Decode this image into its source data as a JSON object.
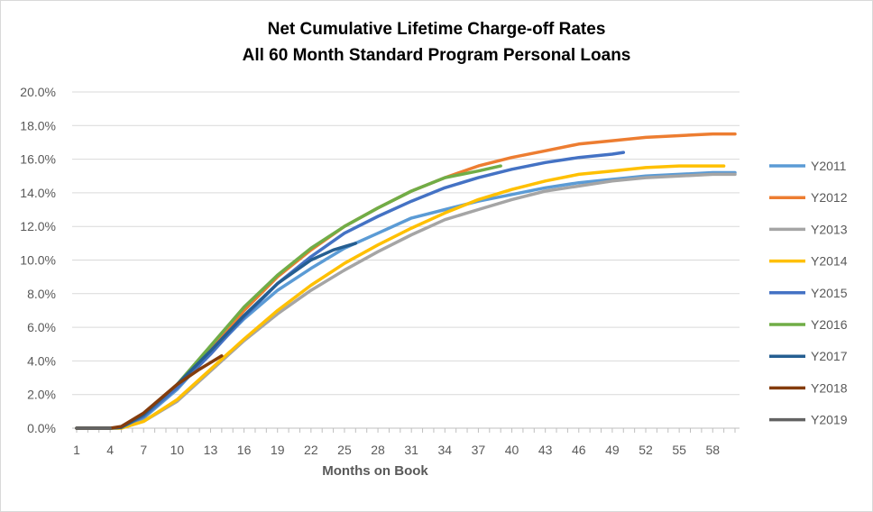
{
  "chart_data": {
    "type": "line",
    "title": [
      "Net Cumulative Lifetime Charge-off Rates",
      "All 60 Month Standard Program Personal Loans"
    ],
    "xlabel": "Months on Book",
    "ylabel": "",
    "xlim": [
      1,
      60
    ],
    "ylim": [
      0,
      20
    ],
    "x_ticks": [
      1,
      4,
      7,
      10,
      13,
      16,
      19,
      22,
      25,
      28,
      31,
      34,
      37,
      40,
      43,
      46,
      49,
      52,
      55,
      58
    ],
    "y_ticks": [
      "0.0%",
      "2.0%",
      "4.0%",
      "6.0%",
      "8.0%",
      "10.0%",
      "12.0%",
      "14.0%",
      "16.0%",
      "18.0%",
      "20.0%"
    ],
    "grid": "horizontal",
    "legend": "right",
    "series": [
      {
        "name": "Y2011",
        "color": "#5b9bd5",
        "x": [
          1,
          4,
          5,
          7,
          10,
          13,
          16,
          19,
          22,
          25,
          28,
          31,
          34,
          37,
          40,
          43,
          46,
          49,
          52,
          55,
          58,
          60
        ],
        "values": [
          0,
          0,
          0.05,
          0.6,
          2.3,
          4.5,
          6.5,
          8.2,
          9.5,
          10.7,
          11.6,
          12.5,
          13.0,
          13.5,
          13.9,
          14.3,
          14.6,
          14.8,
          15.0,
          15.1,
          15.2,
          15.2
        ]
      },
      {
        "name": "Y2012",
        "color": "#ed7d31",
        "x": [
          1,
          4,
          5,
          7,
          10,
          13,
          16,
          19,
          22,
          25,
          28,
          31,
          34,
          37,
          40,
          43,
          46,
          49,
          52,
          55,
          58,
          60
        ],
        "values": [
          0,
          0,
          0.05,
          0.7,
          2.5,
          4.7,
          7.0,
          9.0,
          10.6,
          12.0,
          13.1,
          14.1,
          14.9,
          15.6,
          16.1,
          16.5,
          16.9,
          17.1,
          17.3,
          17.4,
          17.5,
          17.5
        ]
      },
      {
        "name": "Y2013",
        "color": "#a5a5a5",
        "x": [
          1,
          4,
          5,
          7,
          10,
          13,
          16,
          19,
          22,
          25,
          28,
          31,
          34,
          37,
          40,
          43,
          46,
          49,
          52,
          55,
          58,
          60
        ],
        "values": [
          0,
          0,
          0,
          0.4,
          1.6,
          3.4,
          5.2,
          6.8,
          8.2,
          9.4,
          10.5,
          11.5,
          12.4,
          13.0,
          13.6,
          14.1,
          14.4,
          14.7,
          14.9,
          15.0,
          15.1,
          15.1
        ]
      },
      {
        "name": "Y2014",
        "color": "#ffc000",
        "x": [
          1,
          4,
          5,
          7,
          10,
          13,
          16,
          19,
          22,
          25,
          28,
          31,
          34,
          37,
          40,
          43,
          46,
          49,
          52,
          55,
          58,
          59
        ],
        "values": [
          0,
          0,
          0,
          0.4,
          1.7,
          3.5,
          5.3,
          7.0,
          8.5,
          9.8,
          10.9,
          11.9,
          12.8,
          13.6,
          14.2,
          14.7,
          15.1,
          15.3,
          15.5,
          15.6,
          15.6,
          15.6
        ]
      },
      {
        "name": "Y2015",
        "color": "#4472c4",
        "x": [
          1,
          4,
          5,
          7,
          10,
          13,
          16,
          19,
          22,
          25,
          28,
          31,
          34,
          37,
          40,
          43,
          46,
          49,
          50
        ],
        "values": [
          0,
          0,
          0.05,
          0.7,
          2.4,
          4.4,
          6.6,
          8.6,
          10.2,
          11.6,
          12.6,
          13.5,
          14.3,
          14.9,
          15.4,
          15.8,
          16.1,
          16.3,
          16.4
        ]
      },
      {
        "name": "Y2016",
        "color": "#70ad47",
        "x": [
          1,
          4,
          5,
          7,
          10,
          13,
          16,
          19,
          22,
          25,
          28,
          31,
          34,
          37,
          39
        ],
        "values": [
          0,
          0,
          0.05,
          0.8,
          2.6,
          4.9,
          7.2,
          9.1,
          10.7,
          12.0,
          13.1,
          14.1,
          14.9,
          15.3,
          15.6
        ]
      },
      {
        "name": "Y2017",
        "color": "#255e91",
        "x": [
          1,
          4,
          5,
          7,
          10,
          13,
          16,
          19,
          22,
          24,
          26
        ],
        "values": [
          0,
          0,
          0.05,
          0.8,
          2.6,
          4.6,
          6.7,
          8.6,
          10.0,
          10.6,
          11.0
        ]
      },
      {
        "name": "Y2018",
        "color": "#843c0c",
        "x": [
          1,
          4,
          5,
          7,
          10,
          12,
          14
        ],
        "values": [
          0,
          0,
          0.1,
          0.9,
          2.6,
          3.5,
          4.3
        ]
      },
      {
        "name": "Y2019",
        "color": "#636363",
        "x": [
          1,
          3,
          4
        ],
        "values": [
          0,
          0,
          0
        ]
      }
    ]
  }
}
